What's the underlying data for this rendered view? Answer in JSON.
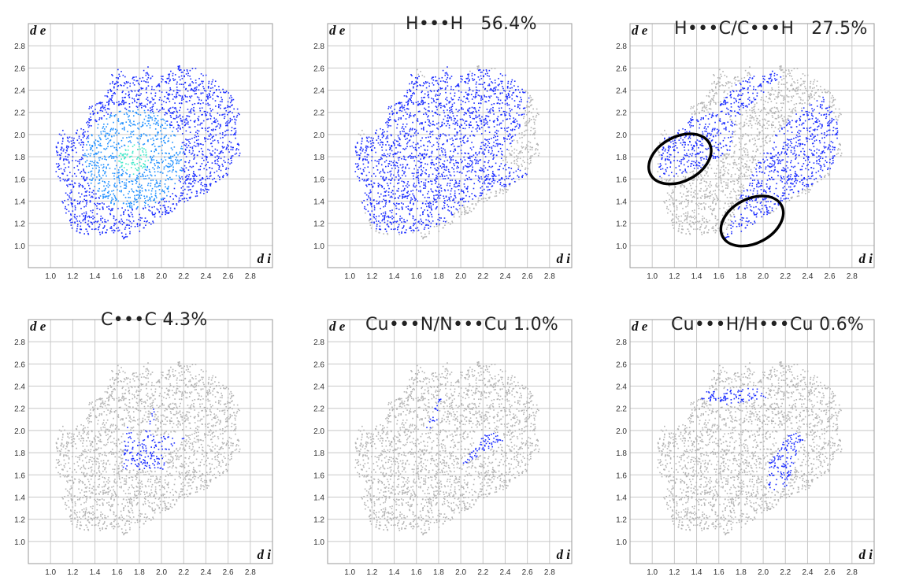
{
  "figure": {
    "kind": "fingerprint-plots",
    "colors": {
      "background_points": "#b4b4b4",
      "highlight_low": "#1a2cff",
      "highlight_mid": "#1e8fff",
      "highlight_high": "#40e8c8",
      "grid": "#c8c8c8",
      "ellipse": "#000000"
    }
  },
  "chart_data": [
    {
      "type": "scatter",
      "id": "full",
      "title": "",
      "xlabel": "d i",
      "ylabel": "d e",
      "xlim": [
        0.8,
        3.0
      ],
      "ylim": [
        0.8,
        3.0
      ],
      "xticks": [
        "1.0",
        "1.2",
        "1.4",
        "1.6",
        "1.8",
        "2.0",
        "2.2",
        "2.4",
        "2.6",
        "2.8"
      ],
      "yticks": [
        "1.0",
        "1.2",
        "1.4",
        "1.6",
        "1.8",
        "2.0",
        "2.2",
        "2.4",
        "2.6",
        "2.8"
      ],
      "grid": true,
      "highlight": "all"
    },
    {
      "type": "scatter",
      "id": "hh",
      "title": "H•••H   56.4%",
      "xlabel": "d i",
      "ylabel": "d e",
      "xlim": [
        0.8,
        3.0
      ],
      "ylim": [
        0.8,
        3.0
      ],
      "xticks": [
        "1.0",
        "1.2",
        "1.4",
        "1.6",
        "1.8",
        "2.0",
        "2.2",
        "2.4",
        "2.6",
        "2.8"
      ],
      "yticks": [
        "1.0",
        "1.2",
        "1.4",
        "1.6",
        "1.8",
        "2.0",
        "2.2",
        "2.4",
        "2.6",
        "2.8"
      ],
      "grid": true,
      "highlight": "hh"
    },
    {
      "type": "scatter",
      "id": "hc",
      "title": "H•••C/C•••H   27.5%",
      "xlabel": "d i",
      "ylabel": "d e",
      "xlim": [
        0.8,
        3.0
      ],
      "ylim": [
        0.8,
        3.0
      ],
      "xticks": [
        "1.0",
        "1.2",
        "1.4",
        "1.6",
        "1.8",
        "2.0",
        "2.2",
        "2.4",
        "2.6",
        "2.8"
      ],
      "yticks": [
        "1.0",
        "1.2",
        "1.4",
        "1.6",
        "1.8",
        "2.0",
        "2.2",
        "2.4",
        "2.6",
        "2.8"
      ],
      "grid": true,
      "highlight": "hc",
      "annotations": [
        {
          "kind": "ellipse",
          "cx": 1.25,
          "cy": 1.78,
          "rx": 0.3,
          "ry": 0.2
        },
        {
          "kind": "ellipse",
          "cx": 1.9,
          "cy": 1.22,
          "rx": 0.3,
          "ry": 0.2
        }
      ]
    },
    {
      "type": "scatter",
      "id": "cc",
      "title": "C•••C 4.3%",
      "xlabel": "d i",
      "ylabel": "d e",
      "xlim": [
        0.8,
        3.0
      ],
      "ylim": [
        0.8,
        3.0
      ],
      "xticks": [
        "1.0",
        "1.2",
        "1.4",
        "1.6",
        "1.8",
        "2.0",
        "2.2",
        "2.4",
        "2.6",
        "2.8"
      ],
      "yticks": [
        "1.0",
        "1.2",
        "1.4",
        "1.6",
        "1.8",
        "2.0",
        "2.2",
        "2.4",
        "2.6",
        "2.8"
      ],
      "grid": true,
      "highlight": "cc"
    },
    {
      "type": "scatter",
      "id": "cun",
      "title": "Cu•••N/N•••Cu 1.0%",
      "xlabel": "d i",
      "ylabel": "d e",
      "xlim": [
        0.8,
        3.0
      ],
      "ylim": [
        0.8,
        3.0
      ],
      "xticks": [
        "1.0",
        "1.2",
        "1.4",
        "1.6",
        "1.8",
        "2.0",
        "2.2",
        "2.4",
        "2.6",
        "2.8"
      ],
      "yticks": [
        "1.0",
        "1.2",
        "1.4",
        "1.6",
        "1.8",
        "2.0",
        "2.2",
        "2.4",
        "2.6",
        "2.8"
      ],
      "grid": true,
      "highlight": "cun"
    },
    {
      "type": "scatter",
      "id": "cuh",
      "title": "Cu•••H/H•••Cu 0.6%",
      "xlabel": "d i",
      "ylabel": "d e",
      "xlim": [
        0.8,
        3.0
      ],
      "ylim": [
        0.8,
        3.0
      ],
      "xticks": [
        "1.0",
        "1.2",
        "1.4",
        "1.6",
        "1.8",
        "2.0",
        "2.2",
        "2.4",
        "2.6",
        "2.8"
      ],
      "yticks": [
        "1.0",
        "1.2",
        "1.4",
        "1.6",
        "1.8",
        "2.0",
        "2.2",
        "2.4",
        "2.6",
        "2.8"
      ],
      "grid": true,
      "highlight": "cuh"
    }
  ]
}
